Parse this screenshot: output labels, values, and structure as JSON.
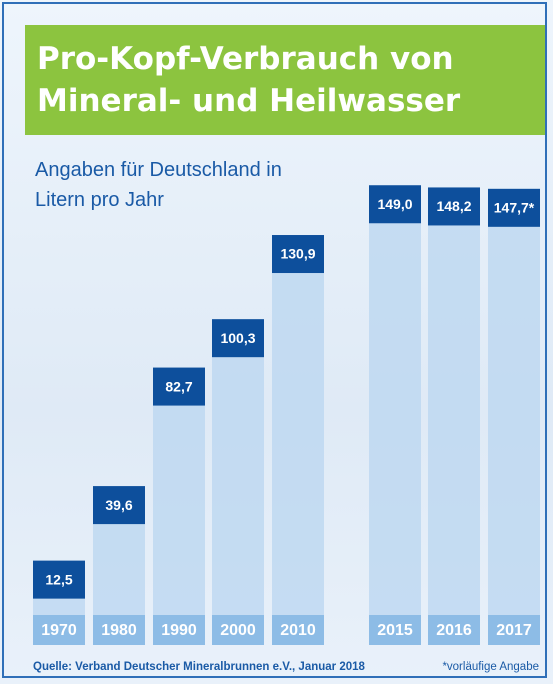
{
  "chart_data": {
    "type": "bar",
    "title": "Pro-Kopf-Verbrauch von Mineral- und Heilwasser",
    "subtitle": "Angaben für Deutschland in Litern pro Jahr",
    "categories": [
      "1970",
      "1980",
      "1990",
      "2000",
      "2010",
      "2015",
      "2016",
      "2017"
    ],
    "values": [
      12.5,
      39.6,
      82.7,
      100.3,
      130.9,
      149.0,
      148.2,
      147.7
    ],
    "value_labels": [
      "12,5",
      "39,6",
      "82,7",
      "100,3",
      "130,9",
      "149,0",
      "148,2",
      "147,7*"
    ],
    "color": "#0d4f9c",
    "source": "Quelle: Verband Deutscher Mineralbrunnen e.V., Januar 2018",
    "note": "*vorläufige Angabe"
  }
}
